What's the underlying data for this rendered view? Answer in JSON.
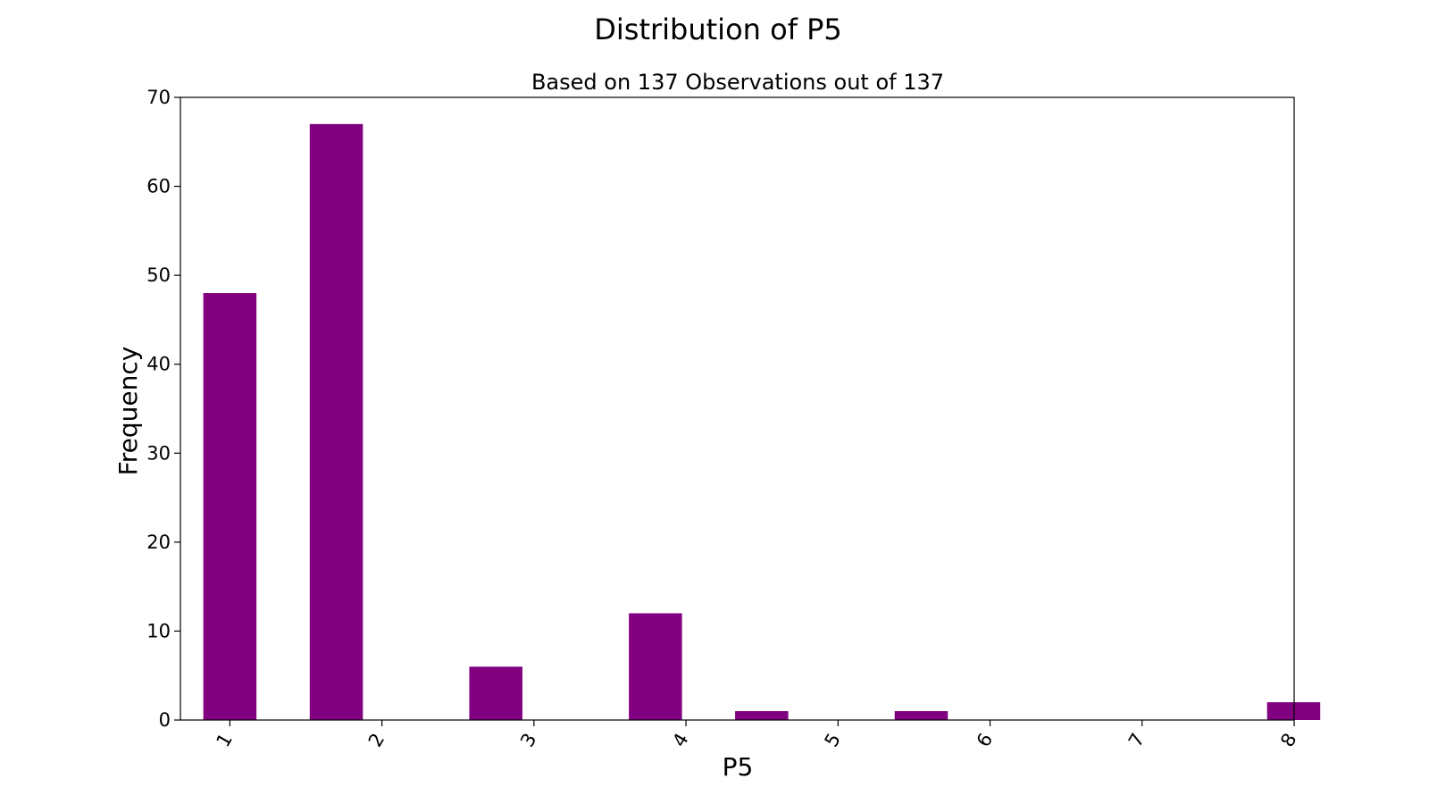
{
  "chart_data": {
    "type": "bar",
    "title": "Distribution of P5",
    "subtitle": "Based on 137 Observations out of 137",
    "xlabel": "P5",
    "ylabel": "Frequency",
    "x_ticks": [
      "1",
      "2",
      "3",
      "4",
      "5",
      "6",
      "7",
      "8"
    ],
    "bars": [
      {
        "x": 1.0,
        "value": 48
      },
      {
        "x": 1.667,
        "value": 67
      },
      {
        "x": 2.667,
        "value": 6
      },
      {
        "x": 3.667,
        "value": 12
      },
      {
        "x": 4.333,
        "value": 1
      },
      {
        "x": 5.333,
        "value": 1
      },
      {
        "x": 7.667,
        "value": 2
      }
    ],
    "bin_width": 0.333,
    "xlim": [
      0.69,
      7.67
    ],
    "ylim": [
      0,
      70
    ],
    "y_ticks": [
      0,
      10,
      20,
      30,
      40,
      50,
      60,
      70
    ],
    "bar_color": "#800080",
    "grid": false,
    "legend": "none"
  }
}
